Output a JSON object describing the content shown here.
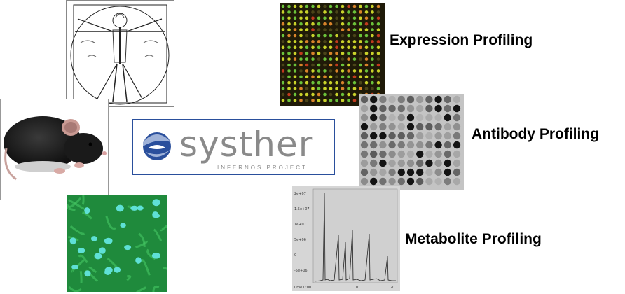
{
  "logo": {
    "brand": "systher",
    "subtitle": "INFERNOS PROJECT"
  },
  "labels": {
    "expression": "Expression Profiling",
    "antibody": "Antibody Profiling",
    "metabolite": "Metabolite Profiling"
  },
  "chromatogram": {
    "y_ticks": [
      "2e+07",
      "1.5e+07",
      "1e+07",
      "5e+06",
      "0",
      "-5e+06"
    ],
    "x_ticks": [
      "Time 0:00",
      "10",
      "20"
    ]
  },
  "icons": [
    "vitruvian-man-image",
    "mouse-image",
    "cell-fluorescence-image",
    "dna-microarray-image",
    "antibody-array-image",
    "chromatogram-image",
    "systher-swirl-icon"
  ],
  "colors": {
    "logo_blue": "#2a4f9c",
    "logo_gray": "#8a8a8a",
    "cell_green": "#3db85a",
    "nucleus_cyan": "#5fe0d6"
  }
}
